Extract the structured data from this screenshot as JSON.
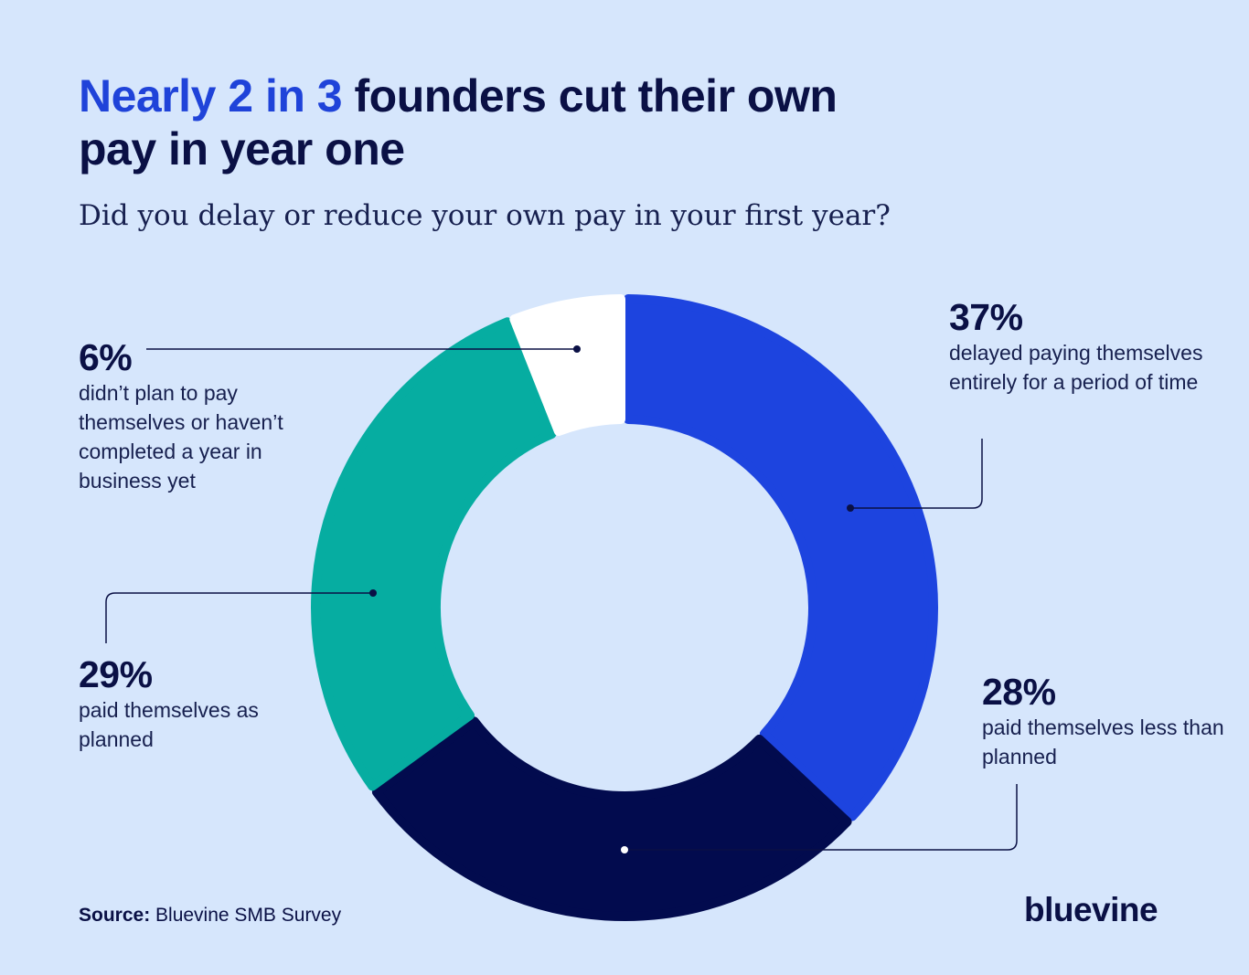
{
  "title": {
    "highlight": "Nearly 2 in 3",
    "rest": " founders cut their own pay in year one"
  },
  "subtitle": "Did you delay or reduce your own pay in your first year?",
  "chart_data": {
    "type": "pie",
    "variant": "donut",
    "title": "Nearly 2 in 3 founders cut their own pay in year one",
    "subtitle": "Did you delay or reduce your own pay in your first year?",
    "slices": [
      {
        "label": "delayed paying themselves entirely for a period of time",
        "value": 37,
        "display": "37%",
        "color": "#1d44df"
      },
      {
        "label": "paid themselves less than planned",
        "value": 28,
        "display": "28%",
        "color": "#020b4e"
      },
      {
        "label": "paid themselves as planned",
        "value": 29,
        "display": "29%",
        "color": "#06ada1"
      },
      {
        "label": "didn’t plan to pay themselves or haven’t completed a year in business yet",
        "value": 6,
        "display": "6%",
        "color": "#ffffff"
      }
    ]
  },
  "source": {
    "label": "Source:",
    "text": " Bluevine SMB Survey"
  },
  "logo": "bluevine",
  "colors": {
    "background": "#d6e6fc",
    "accent": "#1f43d9",
    "navy": "#0a1045",
    "leader": "#0a1045"
  }
}
